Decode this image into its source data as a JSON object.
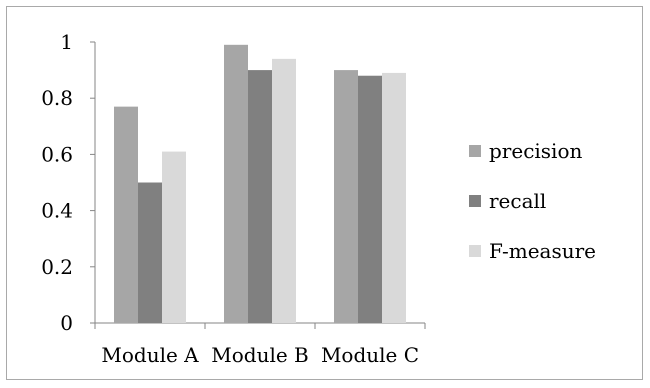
{
  "chart_data": {
    "type": "bar",
    "categories": [
      "Module A",
      "Module B",
      "Module C"
    ],
    "series": [
      {
        "name": "precision",
        "values": [
          0.77,
          0.99,
          0.9
        ],
        "color": "#a6a6a6"
      },
      {
        "name": "recall",
        "values": [
          0.5,
          0.9,
          0.88
        ],
        "color": "#808080"
      },
      {
        "name": "F-measure",
        "values": [
          0.61,
          0.94,
          0.89
        ],
        "color": "#d9d9d9"
      }
    ],
    "yticks": [
      "0",
      "0.2",
      "0.4",
      "0.6",
      "0.8",
      "1"
    ],
    "ylim": [
      0,
      1
    ],
    "grid": false,
    "legend": "right",
    "title": "",
    "xlabel": "",
    "ylabel": ""
  }
}
